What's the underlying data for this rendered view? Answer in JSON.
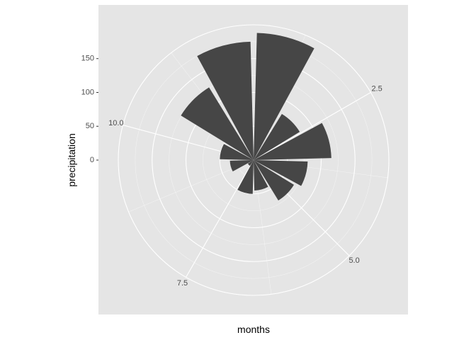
{
  "chart_data": {
    "type": "bar",
    "coord": "polar",
    "theme": "ggplot2-grey",
    "xlabel": "months",
    "ylabel": "precipitation",
    "x_ticks": [
      "2.5",
      "5.0",
      "7.5",
      "10.0"
    ],
    "y_ticks": [
      "0",
      "50",
      "100",
      "150"
    ],
    "x": [
      1,
      2,
      3,
      4,
      5,
      6,
      7,
      8,
      9,
      10,
      11,
      12
    ],
    "values": [
      188,
      80,
      115,
      80,
      70,
      45,
      50,
      10,
      35,
      50,
      126,
      175
    ],
    "ylim": [
      0,
      200
    ],
    "xlim": [
      0.5,
      12.5
    ],
    "grid": true,
    "colors": {
      "panel": "#e5e5e5",
      "grid": "#ffffff",
      "bar": "#464646"
    }
  }
}
